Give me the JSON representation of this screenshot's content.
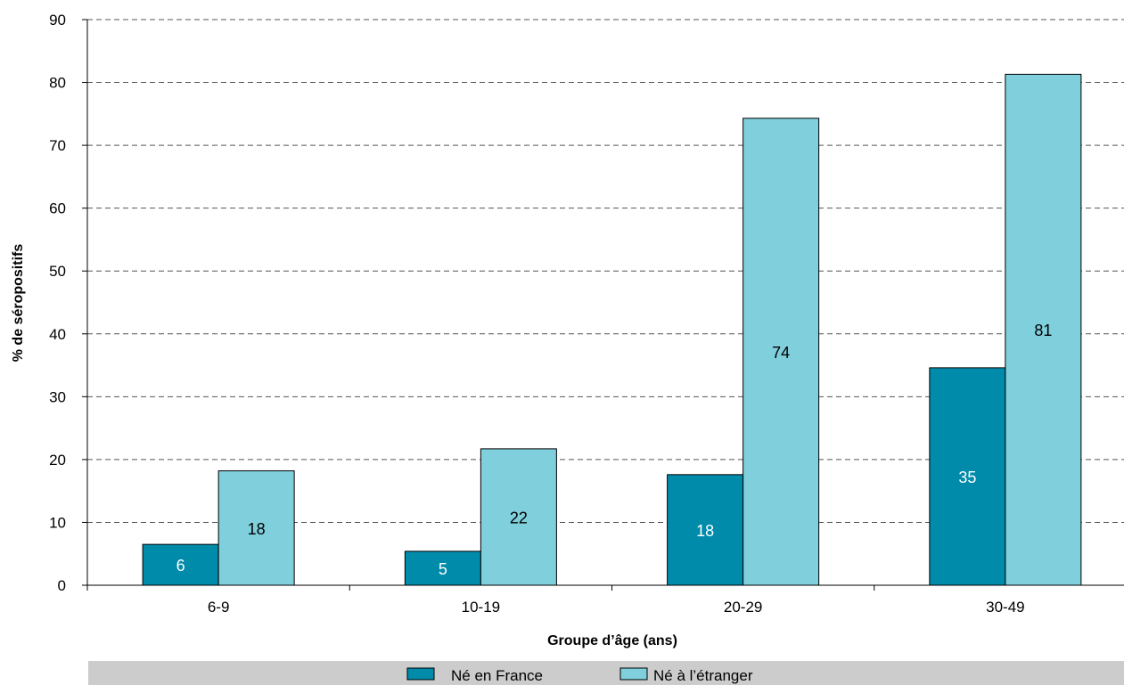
{
  "chart_data": {
    "type": "bar",
    "title": "",
    "xlabel": "Groupe d’âge (ans)",
    "ylabel": "% de séropositifs",
    "ylim": [
      0,
      90
    ],
    "yticks": [
      0,
      10,
      20,
      30,
      40,
      50,
      60,
      70,
      80,
      90
    ],
    "grid": true,
    "legend_position": "bottom",
    "categories": [
      "6-9",
      "10-19",
      "20-29",
      "30-49"
    ],
    "series": [
      {
        "name": "Né en France",
        "color": "#008bab",
        "label_color": "#ffffff",
        "values": [
          6.5,
          5.4,
          17.6,
          34.6
        ],
        "labels": [
          "6",
          "5",
          "18",
          "35"
        ]
      },
      {
        "name": "Né à l’étranger",
        "color": "#7fcfdc",
        "label_color": "#000000",
        "values": [
          18.2,
          21.7,
          74.3,
          81.3
        ],
        "labels": [
          "18",
          "22",
          "74",
          "81"
        ]
      }
    ]
  }
}
